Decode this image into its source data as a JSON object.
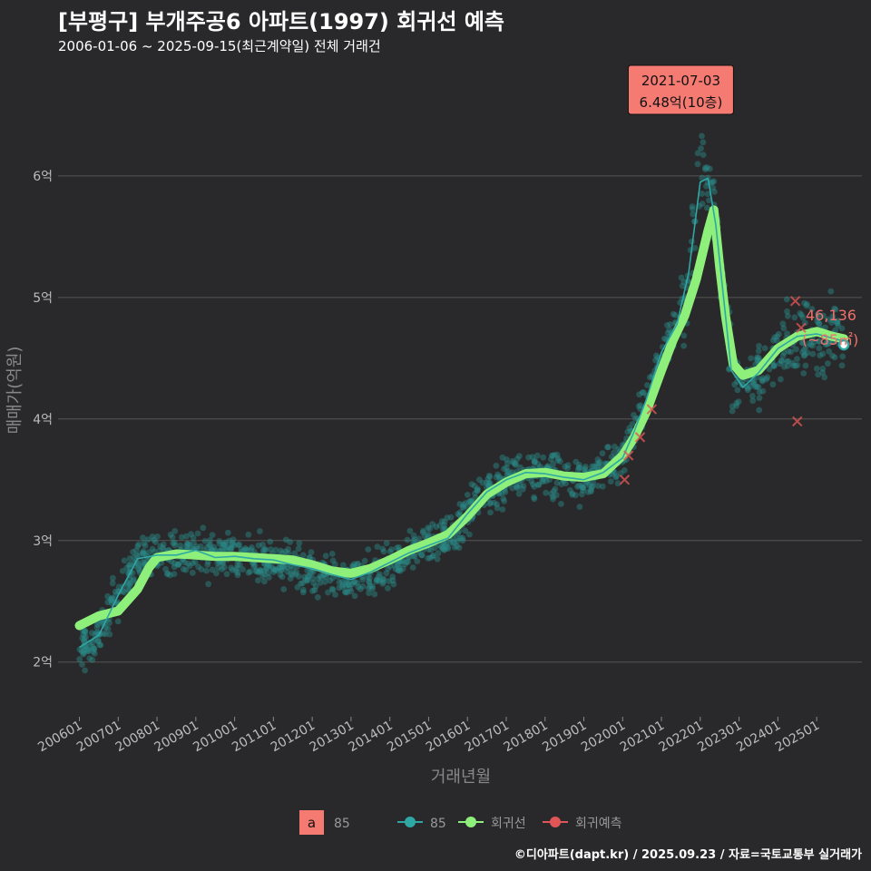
{
  "header": {
    "title": "[부평구] 부개주공6 아파트(1997) 회귀선 예측",
    "subtitle": "2006-01-06 ~ 2025-09-15(최근계약일) 전체 거래건"
  },
  "credit": "©디아파트(dapt.kr) / 2025.09.23 / 자료=국토교통부 실거래가",
  "colors": {
    "background": "#29292b",
    "scatter": "#2a8c8a",
    "trend_line": "#2fa8a5",
    "regression": "#8ef07a",
    "prediction": "#e05555",
    "annotation_fill": "#f47a72",
    "end_label": "#f0706a",
    "grid": "#555555"
  },
  "chart_data": {
    "type": "line",
    "xlabel": "거래년월",
    "ylabel": "매매가(억원)",
    "x_range": [
      "2005-06",
      "2026-06"
    ],
    "ylim": [
      1.55,
      6.85
    ],
    "y_ticks": [
      {
        "value": 2,
        "label": "2억"
      },
      {
        "value": 3,
        "label": "3억"
      },
      {
        "value": 4,
        "label": "4억"
      },
      {
        "value": 5,
        "label": "5억"
      },
      {
        "value": 6,
        "label": "6억"
      }
    ],
    "x_ticks": [
      "200601",
      "200701",
      "200801",
      "200901",
      "201001",
      "201101",
      "201201",
      "201301",
      "201401",
      "201501",
      "201601",
      "201701",
      "201801",
      "201901",
      "202001",
      "202101",
      "202201",
      "202301",
      "202401",
      "202501"
    ],
    "grid": true,
    "legend": {
      "placement": "bottom",
      "area_badge": "a",
      "area_label": "85",
      "series_labels": [
        "85",
        "회귀선",
        "회귀예측"
      ]
    },
    "regression_line": [
      [
        2006.0,
        2.3
      ],
      [
        2006.5,
        2.38
      ],
      [
        2007.0,
        2.42
      ],
      [
        2007.5,
        2.6
      ],
      [
        2007.8,
        2.78
      ],
      [
        2008.0,
        2.86
      ],
      [
        2008.5,
        2.89
      ],
      [
        2009.0,
        2.88
      ],
      [
        2009.5,
        2.87
      ],
      [
        2010.0,
        2.87
      ],
      [
        2010.5,
        2.86
      ],
      [
        2011.0,
        2.85
      ],
      [
        2011.5,
        2.84
      ],
      [
        2012.0,
        2.8
      ],
      [
        2012.5,
        2.75
      ],
      [
        2013.0,
        2.73
      ],
      [
        2013.5,
        2.77
      ],
      [
        2014.0,
        2.84
      ],
      [
        2014.5,
        2.92
      ],
      [
        2015.0,
        2.98
      ],
      [
        2015.5,
        3.05
      ],
      [
        2016.0,
        3.2
      ],
      [
        2016.5,
        3.38
      ],
      [
        2017.0,
        3.48
      ],
      [
        2017.5,
        3.55
      ],
      [
        2018.0,
        3.56
      ],
      [
        2018.5,
        3.53
      ],
      [
        2019.0,
        3.52
      ],
      [
        2019.5,
        3.55
      ],
      [
        2020.0,
        3.7
      ],
      [
        2020.3,
        3.85
      ],
      [
        2020.6,
        4.05
      ],
      [
        2021.0,
        4.4
      ],
      [
        2021.3,
        4.65
      ],
      [
        2021.6,
        4.85
      ],
      [
        2021.9,
        5.15
      ],
      [
        2022.2,
        5.55
      ],
      [
        2022.35,
        5.72
      ],
      [
        2022.5,
        5.25
      ],
      [
        2022.65,
        4.85
      ],
      [
        2022.85,
        4.45
      ],
      [
        2023.1,
        4.36
      ],
      [
        2023.5,
        4.4
      ],
      [
        2024.0,
        4.58
      ],
      [
        2024.5,
        4.68
      ],
      [
        2025.0,
        4.72
      ],
      [
        2025.4,
        4.68
      ],
      [
        2025.7,
        4.66
      ]
    ],
    "trend_line": [
      [
        2006.0,
        2.12
      ],
      [
        2006.5,
        2.22
      ],
      [
        2007.0,
        2.55
      ],
      [
        2007.5,
        2.85
      ],
      [
        2008.0,
        2.88
      ],
      [
        2008.5,
        2.88
      ],
      [
        2009.0,
        2.92
      ],
      [
        2009.5,
        2.86
      ],
      [
        2010.0,
        2.87
      ],
      [
        2010.5,
        2.85
      ],
      [
        2011.0,
        2.84
      ],
      [
        2011.5,
        2.8
      ],
      [
        2012.0,
        2.77
      ],
      [
        2012.5,
        2.72
      ],
      [
        2013.0,
        2.68
      ],
      [
        2013.5,
        2.74
      ],
      [
        2014.0,
        2.82
      ],
      [
        2014.5,
        2.9
      ],
      [
        2015.0,
        2.96
      ],
      [
        2015.5,
        3.02
      ],
      [
        2016.0,
        3.22
      ],
      [
        2016.5,
        3.4
      ],
      [
        2017.0,
        3.5
      ],
      [
        2017.5,
        3.56
      ],
      [
        2018.0,
        3.55
      ],
      [
        2018.5,
        3.52
      ],
      [
        2019.0,
        3.5
      ],
      [
        2019.5,
        3.56
      ],
      [
        2020.0,
        3.68
      ],
      [
        2020.3,
        3.9
      ],
      [
        2020.6,
        4.15
      ],
      [
        2021.0,
        4.55
      ],
      [
        2021.4,
        4.78
      ],
      [
        2021.7,
        5.2
      ],
      [
        2022.0,
        5.95
      ],
      [
        2022.2,
        5.98
      ],
      [
        2022.4,
        5.6
      ],
      [
        2022.6,
        5.0
      ],
      [
        2022.8,
        4.4
      ],
      [
        2023.1,
        4.26
      ],
      [
        2023.5,
        4.38
      ],
      [
        2024.0,
        4.58
      ],
      [
        2024.5,
        4.68
      ],
      [
        2025.0,
        4.7
      ],
      [
        2025.7,
        4.64
      ]
    ],
    "predictions": [
      [
        2020.05,
        3.5
      ],
      [
        2020.15,
        3.7
      ],
      [
        2020.45,
        3.85
      ],
      [
        2020.75,
        4.08
      ],
      [
        2024.45,
        4.97
      ],
      [
        2024.5,
        3.98
      ],
      [
        2024.6,
        4.75
      ]
    ],
    "highlight": {
      "date": "2021-07-03",
      "x": 2021.5,
      "y": 6.48,
      "label": "6.48억(10층)"
    },
    "end_point": {
      "x": 2025.7,
      "y": 4.61,
      "value_label": "46,136",
      "area_label": "(~85㎡)"
    }
  }
}
